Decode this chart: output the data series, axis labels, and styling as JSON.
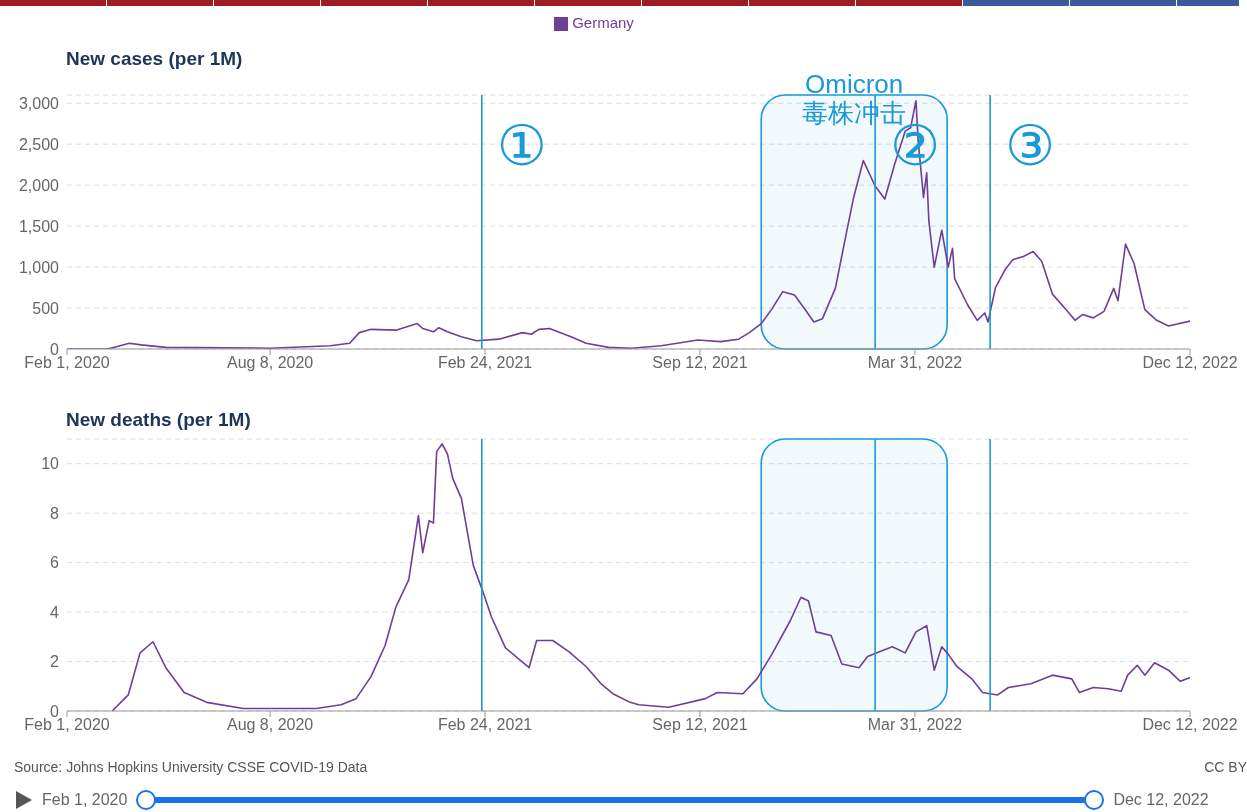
{
  "chart_data": [
    {
      "type": "line",
      "title": "New cases (per 1M)",
      "legend": "top",
      "grid": "y",
      "x": [
        "2020-02-01",
        "2020-03-10",
        "2020-03-30",
        "2020-04-10",
        "2020-05-03",
        "2020-08-08",
        "2020-10-03",
        "2020-10-21",
        "2020-10-30",
        "2020-11-10",
        "2020-12-03",
        "2020-12-23",
        "2020-12-28",
        "2021-01-07",
        "2021-01-12",
        "2021-01-20",
        "2021-02-02",
        "2021-02-16",
        "2021-03-09",
        "2021-03-31",
        "2021-04-08",
        "2021-04-15",
        "2021-04-25",
        "2021-05-15",
        "2021-05-29",
        "2021-06-19",
        "2021-07-10",
        "2021-08-07",
        "2021-09-10",
        "2021-10-01",
        "2021-10-18",
        "2021-10-28",
        "2021-11-08",
        "2021-11-18",
        "2021-11-28",
        "2021-12-09",
        "2021-12-19",
        "2021-12-27",
        "2022-01-04",
        "2022-01-16",
        "2022-01-26",
        "2022-02-02",
        "2022-02-11",
        "2022-02-22",
        "2022-03-03",
        "2022-03-12",
        "2022-03-22",
        "2022-03-27",
        "2022-04-01",
        "2022-04-03",
        "2022-04-08",
        "2022-04-11",
        "2022-04-13",
        "2022-04-18",
        "2022-04-25",
        "2022-05-01",
        "2022-05-05",
        "2022-05-07",
        "2022-05-19",
        "2022-05-28",
        "2022-06-04",
        "2022-06-07",
        "2022-06-14",
        "2022-06-23",
        "2022-06-30",
        "2022-07-10",
        "2022-07-19",
        "2022-07-27",
        "2022-08-06",
        "2022-08-20",
        "2022-08-27",
        "2022-09-03",
        "2022-09-13",
        "2022-09-23",
        "2022-10-02",
        "2022-10-06",
        "2022-10-13",
        "2022-10-21",
        "2022-10-31",
        "2022-11-11",
        "2022-11-22",
        "2022-12-12"
      ],
      "series": [
        {
          "name": "Germany",
          "color": "#6d3f98",
          "values": [
            0,
            0,
            70,
            50,
            20,
            10,
            40,
            70,
            200,
            240,
            230,
            310,
            250,
            210,
            260,
            210,
            150,
            100,
            120,
            200,
            180,
            240,
            250,
            150,
            70,
            20,
            10,
            40,
            110,
            90,
            120,
            200,
            310,
            490,
            700,
            660,
            480,
            330,
            370,
            740,
            1400,
            1850,
            2300,
            1990,
            1830,
            2250,
            2660,
            2700,
            3030,
            2550,
            1850,
            2150,
            1560,
            1000,
            1450,
            1000,
            1230,
            860,
            540,
            350,
            440,
            330,
            750,
            970,
            1090,
            1130,
            1190,
            1070,
            670,
            460,
            350,
            420,
            380,
            460,
            740,
            590,
            1280,
            1040,
            480,
            350,
            280,
            340
          ]
        }
      ],
      "xlim": [
        "2020-02-01",
        "2022-12-12"
      ],
      "xticks": [
        {
          "value": "2020-02-01",
          "label": "Feb 1, 2020"
        },
        {
          "value": "2020-08-08",
          "label": "Aug 8, 2020"
        },
        {
          "value": "2021-02-24",
          "label": "Feb 24, 2021"
        },
        {
          "value": "2021-09-12",
          "label": "Sep 12, 2021"
        },
        {
          "value": "2022-03-31",
          "label": "Mar 31, 2022"
        },
        {
          "value": "2022-12-12",
          "label": "Dec 12, 2022"
        }
      ],
      "ylim": [
        0,
        3100
      ],
      "yticks": [
        0,
        500,
        {
          "value": 1000,
          "label": "1,000"
        },
        {
          "value": 1500,
          "label": "1,500"
        },
        {
          "value": 2000,
          "label": "2,000"
        },
        {
          "value": 2500,
          "label": "2,500"
        },
        {
          "value": 3000,
          "label": "3,000"
        }
      ],
      "ref_lines": [
        {
          "axis": "x",
          "value": "2021-02-21",
          "label": "①",
          "color": "#1a9ad6"
        },
        {
          "axis": "x",
          "value": "2022-02-22",
          "label": "②",
          "color": "#1a9ad6"
        },
        {
          "axis": "x",
          "value": "2022-06-09",
          "label": "③",
          "color": "#1a9ad6"
        }
      ],
      "bands": [
        {
          "axis": "x",
          "from": "2021-11-08",
          "to": "2022-04-30",
          "label": "Omicron 毒株冲击",
          "color": "#1a9ad6"
        }
      ]
    },
    {
      "type": "line",
      "title": "New deaths (per 1M)",
      "grid": "y",
      "x": [
        "2020-03-14",
        "2020-03-29",
        "2020-04-09",
        "2020-04-21",
        "2020-05-03",
        "2020-05-20",
        "2020-06-10",
        "2020-07-14",
        "2020-09-20",
        "2020-10-13",
        "2020-10-27",
        "2020-11-10",
        "2020-11-23",
        "2020-12-03",
        "2020-12-15",
        "2020-12-24",
        "2020-12-28",
        "2021-01-03",
        "2021-01-07",
        "2021-01-10",
        "2021-01-15",
        "2021-01-20",
        "2021-01-25",
        "2021-02-02",
        "2021-02-13",
        "2021-02-23",
        "2021-03-02",
        "2021-03-15",
        "2021-04-06",
        "2021-04-13",
        "2021-04-28",
        "2021-05-13",
        "2021-05-29",
        "2021-06-12",
        "2021-06-23",
        "2021-07-09",
        "2021-07-17",
        "2021-08-14",
        "2021-09-17",
        "2021-09-28",
        "2021-10-22",
        "2021-11-04",
        "2021-11-18",
        "2021-12-05",
        "2021-12-15",
        "2021-12-22",
        "2021-12-29",
        "2022-01-12",
        "2022-01-22",
        "2022-02-07",
        "2022-02-15",
        "2022-02-26",
        "2022-03-10",
        "2022-03-22",
        "2022-04-01",
        "2022-04-11",
        "2022-04-18",
        "2022-04-25",
        "2022-05-01",
        "2022-05-09",
        "2022-05-23",
        "2022-06-02",
        "2022-06-16",
        "2022-06-26",
        "2022-07-17",
        "2022-08-06",
        "2022-08-24",
        "2022-08-31",
        "2022-09-13",
        "2022-09-27",
        "2022-10-09",
        "2022-10-15",
        "2022-10-24",
        "2022-10-31",
        "2022-11-09",
        "2022-11-22",
        "2022-12-03",
        "2022-12-12"
      ],
      "series": [
        {
          "color": "#6d3f98",
          "values": [
            0,
            0.65,
            2.35,
            2.8,
            1.75,
            0.75,
            0.35,
            0.1,
            0.1,
            0.25,
            0.5,
            1.4,
            2.65,
            4.2,
            5.3,
            7.9,
            6.4,
            7.7,
            7.6,
            10.5,
            10.8,
            10.4,
            9.4,
            8.6,
            5.9,
            4.7,
            3.8,
            2.55,
            1.75,
            2.85,
            2.85,
            2.4,
            1.8,
            1.1,
            0.7,
            0.35,
            0.25,
            0.15,
            0.5,
            0.75,
            0.7,
            1.3,
            2.3,
            3.65,
            4.6,
            4.45,
            3.2,
            3.05,
            1.9,
            1.75,
            2.2,
            2.4,
            2.6,
            2.35,
            3.2,
            3.45,
            1.65,
            2.6,
            2.3,
            1.8,
            1.3,
            0.75,
            0.65,
            0.95,
            1.1,
            1.45,
            1.3,
            0.75,
            0.95,
            0.9,
            0.8,
            1.45,
            1.85,
            1.45,
            1.95,
            1.65,
            1.2,
            1.35
          ]
        }
      ],
      "xlim": [
        "2020-02-01",
        "2022-12-12"
      ],
      "xticks": [
        {
          "value": "2020-02-01",
          "label": "Feb 1, 2020"
        },
        {
          "value": "2020-08-08",
          "label": "Aug 8, 2020"
        },
        {
          "value": "2021-02-24",
          "label": "Feb 24, 2021"
        },
        {
          "value": "2021-09-12",
          "label": "Sep 12, 2021"
        },
        {
          "value": "2022-03-31",
          "label": "Mar 31, 2022"
        },
        {
          "value": "2022-12-12",
          "label": "Dec 12, 2022"
        }
      ],
      "ylim": [
        0,
        11
      ],
      "yticks": [
        0,
        2,
        4,
        6,
        8,
        10
      ],
      "ref_lines": [
        {
          "axis": "x",
          "value": "2021-02-21",
          "color": "#1a9ad6"
        },
        {
          "axis": "x",
          "value": "2022-02-22",
          "color": "#1a9ad6"
        },
        {
          "axis": "x",
          "value": "2022-06-09",
          "color": "#1a9ad6"
        }
      ],
      "bands": [
        {
          "axis": "x",
          "from": "2021-11-08",
          "to": "2022-04-30",
          "color": "#1a9ad6"
        }
      ],
      "annotations": [
        "Source: Johns Hopkins University CSSE COVID-19 Data",
        "CC BY"
      ]
    }
  ]
}
